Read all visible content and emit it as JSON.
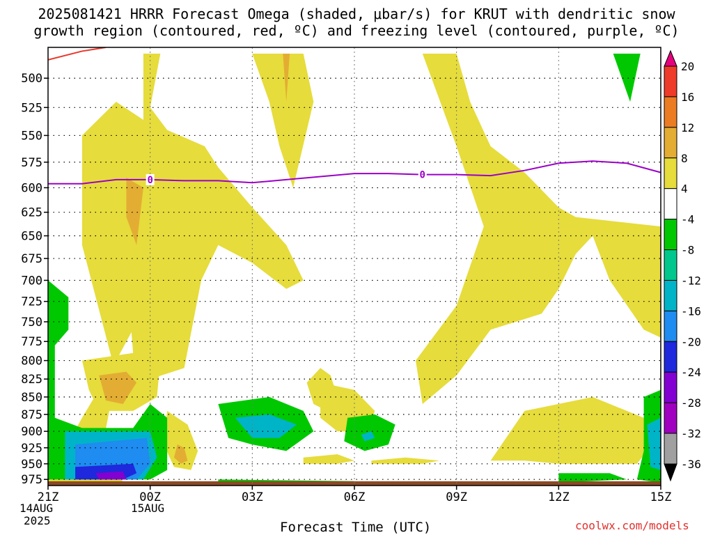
{
  "title_line1": "2025081421 HRRR Forecast Omega (shaded, μbar/s) for KRUT with dendritic snow",
  "title_line2": "growth region (contoured, red, ºC) and freezing level (contoured, purple, ºC)",
  "xlabel": "Forecast Time (UTC)",
  "credit": "coolwx.com/models",
  "dates": {
    "start_line1": "14AUG",
    "start_line2": "2025",
    "day2": "15AUG"
  },
  "colors": {
    "freezing_level": "#9b00c8",
    "dgz": "#e8382c",
    "terrain": "#8b4a24"
  },
  "chart_data": {
    "type": "heatmap",
    "title": "2025081421 HRRR Forecast Omega (shaded, μbar/s) for KRUT with dendritic snow growth region (contoured, red, ºC) and freezing level (contoured, purple, ºC)",
    "xlabel": "Forecast Time (UTC)",
    "ylabel": "",
    "x_ticks": [
      "21Z",
      "00Z",
      "03Z",
      "06Z",
      "09Z",
      "12Z",
      "15Z"
    ],
    "x_range_hours": [
      0,
      18
    ],
    "y_ticks": [
      500,
      525,
      550,
      575,
      600,
      625,
      650,
      675,
      700,
      725,
      750,
      775,
      800,
      825,
      850,
      875,
      900,
      925,
      950,
      975
    ],
    "y_range_mb": [
      475,
      985
    ],
    "y_log": true,
    "y_inverted": true,
    "grid": true,
    "colorbar": {
      "levels": [
        20,
        16,
        12,
        8,
        4,
        -4,
        -8,
        -12,
        -16,
        -20,
        -24,
        -28,
        -32,
        -36
      ],
      "colors": [
        "#e6007e",
        "#ee3b2a",
        "#ec7c22",
        "#e3ad33",
        "#e6dc3c",
        "#ffffff",
        "#00c800",
        "#00c88c",
        "#00b4c8",
        "#1e8cf0",
        "#1e28dc",
        "#8200d2",
        "#a000c0",
        "#a0a0a0",
        "#000000"
      ]
    },
    "freezing_level": {
      "label": "0",
      "hours": [
        0,
        1,
        2,
        3,
        4,
        5,
        6,
        7,
        8,
        9,
        10,
        11,
        12,
        13,
        14,
        15,
        16,
        17,
        18
      ],
      "pressure": [
        596,
        596,
        592,
        592,
        593,
        593,
        595,
        592,
        589,
        586,
        586,
        587,
        587,
        588,
        583,
        576,
        574,
        576,
        585
      ]
    },
    "shaded_regions": [
      {
        "value": 6,
        "pts": [
          [
            0,
            1000
          ],
          [
            0,
            975
          ],
          [
            1,
            880
          ],
          [
            2,
            800
          ],
          [
            3,
            720
          ],
          [
            4,
            660
          ],
          [
            3,
            540
          ],
          [
            2,
            520
          ],
          [
            1,
            550
          ],
          [
            1,
            660
          ],
          [
            2,
            820
          ],
          [
            1.5,
            950
          ],
          [
            2.5,
            990
          ],
          [
            3,
            990
          ]
        ]
      },
      {
        "value": 6,
        "pts": [
          [
            2,
            560
          ],
          [
            3,
            550
          ],
          [
            4,
            600
          ],
          [
            4.5,
            700
          ],
          [
            4,
            810
          ],
          [
            3,
            825
          ],
          [
            2.5,
            790
          ]
        ]
      },
      {
        "value": 10,
        "pts": [
          [
            2.3,
            590
          ],
          [
            2.8,
            600
          ],
          [
            2.6,
            660
          ],
          [
            2.3,
            630
          ]
        ]
      },
      {
        "value": 6,
        "pts": [
          [
            2.8,
            480
          ],
          [
            3.3,
            480
          ],
          [
            3.0,
            525
          ],
          [
            3.5,
            545
          ],
          [
            4.6,
            560
          ],
          [
            5,
            580
          ],
          [
            6,
            620
          ],
          [
            7,
            660
          ],
          [
            7.5,
            700
          ],
          [
            7.0,
            710
          ],
          [
            6,
            680
          ],
          [
            5,
            660
          ],
          [
            4.5,
            700
          ],
          [
            4.2,
            730
          ],
          [
            3.5,
            700
          ],
          [
            2.8,
            560
          ]
        ]
      },
      {
        "value": 6,
        "pts": [
          [
            6,
            480
          ],
          [
            7.5,
            480
          ],
          [
            7.8,
            520
          ],
          [
            7.2,
            600
          ],
          [
            6.8,
            560
          ],
          [
            6.5,
            520
          ]
        ]
      },
      {
        "value": 10,
        "pts": [
          [
            6.9,
            480
          ],
          [
            7.1,
            480
          ],
          [
            7.0,
            520
          ]
        ]
      },
      {
        "value": 6,
        "pts": [
          [
            11,
            480
          ],
          [
            12,
            480
          ],
          [
            12.4,
            520
          ],
          [
            13,
            560
          ],
          [
            14,
            585
          ],
          [
            15,
            620
          ],
          [
            15.5,
            630
          ],
          [
            18,
            640
          ],
          [
            18,
            770
          ],
          [
            17.5,
            760
          ],
          [
            16.5,
            700
          ],
          [
            16,
            650
          ],
          [
            15.5,
            670
          ],
          [
            15,
            710
          ],
          [
            14.5,
            740
          ],
          [
            13,
            760
          ],
          [
            12,
            820
          ],
          [
            11,
            860
          ],
          [
            10.8,
            800
          ],
          [
            12,
            730
          ],
          [
            12.8,
            640
          ],
          [
            12,
            560
          ]
        ]
      },
      {
        "value": 6,
        "pts": [
          [
            1,
            800
          ],
          [
            2.5,
            790
          ],
          [
            3.3,
            800
          ],
          [
            3.2,
            850
          ],
          [
            2.5,
            870
          ],
          [
            1.5,
            870
          ],
          [
            1.2,
            840
          ]
        ]
      },
      {
        "value": 10,
        "pts": [
          [
            1.5,
            820
          ],
          [
            2.3,
            815
          ],
          [
            2.6,
            830
          ],
          [
            2.2,
            860
          ],
          [
            1.7,
            855
          ]
        ]
      },
      {
        "value": 6,
        "pts": [
          [
            8,
            810
          ],
          [
            8.3,
            820
          ],
          [
            8.5,
            850
          ],
          [
            8.2,
            870
          ],
          [
            7.8,
            860
          ],
          [
            7.6,
            830
          ]
        ]
      },
      {
        "value": 6,
        "pts": [
          [
            8,
            830
          ],
          [
            9,
            840
          ],
          [
            9.6,
            870
          ],
          [
            9.4,
            900
          ],
          [
            8.5,
            900
          ],
          [
            8,
            880
          ]
        ]
      },
      {
        "value": 6,
        "pts": [
          [
            14,
            870
          ],
          [
            16,
            850
          ],
          [
            17.5,
            880
          ],
          [
            17.6,
            930
          ],
          [
            17.3,
            950
          ],
          [
            15,
            950
          ],
          [
            14,
            945
          ],
          [
            13,
            945
          ]
        ]
      },
      {
        "value": 6,
        "pts": [
          [
            7.5,
            940
          ],
          [
            8.5,
            935
          ],
          [
            9,
            945
          ],
          [
            8.5,
            950
          ],
          [
            7.5,
            950
          ]
        ]
      },
      {
        "value": 6,
        "pts": [
          [
            9.5,
            945
          ],
          [
            10.5,
            940
          ],
          [
            11.5,
            945
          ],
          [
            11,
            950
          ],
          [
            9.5,
            950
          ]
        ]
      },
      {
        "value": 6,
        "pts": [
          [
            3.5,
            870
          ],
          [
            4.1,
            890
          ],
          [
            4.4,
            930
          ],
          [
            4.2,
            960
          ],
          [
            3.7,
            955
          ],
          [
            3.4,
            920
          ]
        ]
      },
      {
        "value": 10,
        "pts": [
          [
            3.8,
            920
          ],
          [
            4.0,
            925
          ],
          [
            4.1,
            945
          ],
          [
            3.9,
            950
          ],
          [
            3.7,
            940
          ]
        ]
      },
      {
        "value": -6,
        "pts": [
          [
            0,
            700
          ],
          [
            0.6,
            720
          ],
          [
            0.6,
            760
          ],
          [
            0.2,
            780
          ],
          [
            0.2,
            880
          ],
          [
            1,
            895
          ],
          [
            2.5,
            895
          ],
          [
            3,
            860
          ],
          [
            3.5,
            880
          ],
          [
            3.5,
            960
          ],
          [
            3.0,
            975
          ],
          [
            0,
            975
          ]
        ]
      },
      {
        "value": -6,
        "pts": [
          [
            5,
            860
          ],
          [
            6.5,
            850
          ],
          [
            7.5,
            870
          ],
          [
            7.8,
            900
          ],
          [
            7,
            930
          ],
          [
            6,
            920
          ],
          [
            5.3,
            910
          ]
        ]
      },
      {
        "value": -14,
        "pts": [
          [
            5.5,
            880
          ],
          [
            6.5,
            875
          ],
          [
            7.3,
            890
          ],
          [
            6.8,
            910
          ],
          [
            6,
            910
          ]
        ]
      },
      {
        "value": -6,
        "pts": [
          [
            8.8,
            880
          ],
          [
            9.6,
            875
          ],
          [
            10.2,
            890
          ],
          [
            10.0,
            920
          ],
          [
            9.3,
            930
          ],
          [
            8.7,
            915
          ]
        ]
      },
      {
        "value": -14,
        "pts": [
          [
            9.2,
            905
          ],
          [
            9.5,
            900
          ],
          [
            9.6,
            910
          ],
          [
            9.3,
            915
          ]
        ]
      },
      {
        "value": -6,
        "pts": [
          [
            16.6,
            480
          ],
          [
            17.4,
            480
          ],
          [
            17.1,
            520
          ]
        ]
      },
      {
        "value": -6,
        "pts": [
          [
            17.5,
            850
          ],
          [
            18,
            840
          ],
          [
            18,
            980
          ],
          [
            17.3,
            975
          ],
          [
            17.5,
            930
          ]
        ]
      },
      {
        "value": -14,
        "pts": [
          [
            17.6,
            890
          ],
          [
            18,
            880
          ],
          [
            18,
            960
          ],
          [
            17.7,
            955
          ]
        ]
      },
      {
        "value": -6,
        "pts": [
          [
            15,
            965
          ],
          [
            16.5,
            965
          ],
          [
            17,
            975
          ],
          [
            15,
            980
          ]
        ]
      },
      {
        "value": -6,
        "pts": [
          [
            5,
            975
          ],
          [
            9,
            978
          ],
          [
            9,
            980
          ],
          [
            5,
            980
          ]
        ]
      },
      {
        "value": -14,
        "pts": [
          [
            0.5,
            900
          ],
          [
            3,
            900
          ],
          [
            3.2,
            940
          ],
          [
            2.8,
            975
          ],
          [
            0.5,
            975
          ]
        ]
      },
      {
        "value": -18,
        "pts": [
          [
            0.8,
            920
          ],
          [
            2.9,
            910
          ],
          [
            3.0,
            950
          ],
          [
            2.6,
            975
          ],
          [
            0.8,
            975
          ]
        ]
      },
      {
        "value": -22,
        "pts": [
          [
            0.8,
            955
          ],
          [
            2.5,
            950
          ],
          [
            2.6,
            965
          ],
          [
            2.2,
            975
          ],
          [
            0.8,
            975
          ]
        ]
      },
      {
        "value": -26,
        "pts": [
          [
            1.4,
            965
          ],
          [
            2.2,
            962
          ],
          [
            2.3,
            975
          ],
          [
            1.5,
            975
          ]
        ]
      }
    ],
    "dgz_contour": {
      "hours": [
        0,
        1,
        1.7
      ],
      "pressure": [
        485,
        478,
        475
      ]
    }
  }
}
